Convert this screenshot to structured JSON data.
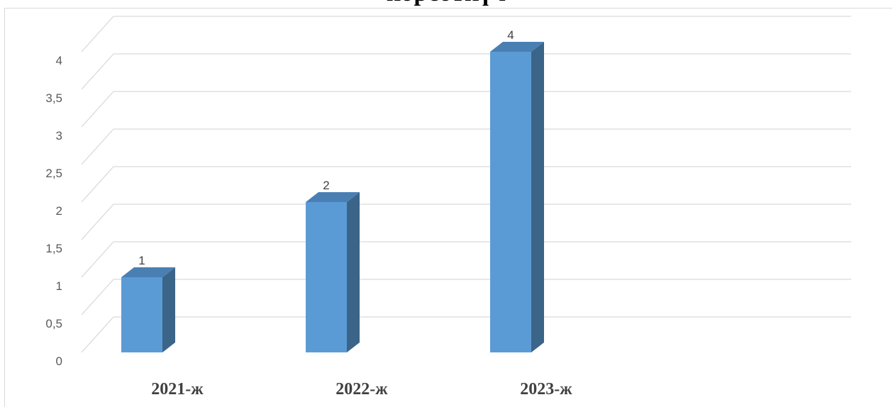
{
  "chart_data": {
    "type": "bar",
    "title": "көрсөткүч",
    "categories": [
      "2021-ж",
      "2022-ж",
      "2023-ж"
    ],
    "values": [
      1,
      2,
      4
    ],
    "data_labels": [
      "1",
      "2",
      "4"
    ],
    "y_ticks": [
      "0",
      "0,5",
      "1",
      "1,5",
      "2",
      "2,5",
      "3",
      "3,5",
      "4"
    ],
    "ylim": [
      0,
      4
    ],
    "grid": true,
    "style": "3d-column",
    "colors": {
      "bar_front": "#5b9bd5",
      "bar_side": "#3b6489",
      "bar_top": "#4a7fb3",
      "grid": "#d9d9d9"
    }
  }
}
